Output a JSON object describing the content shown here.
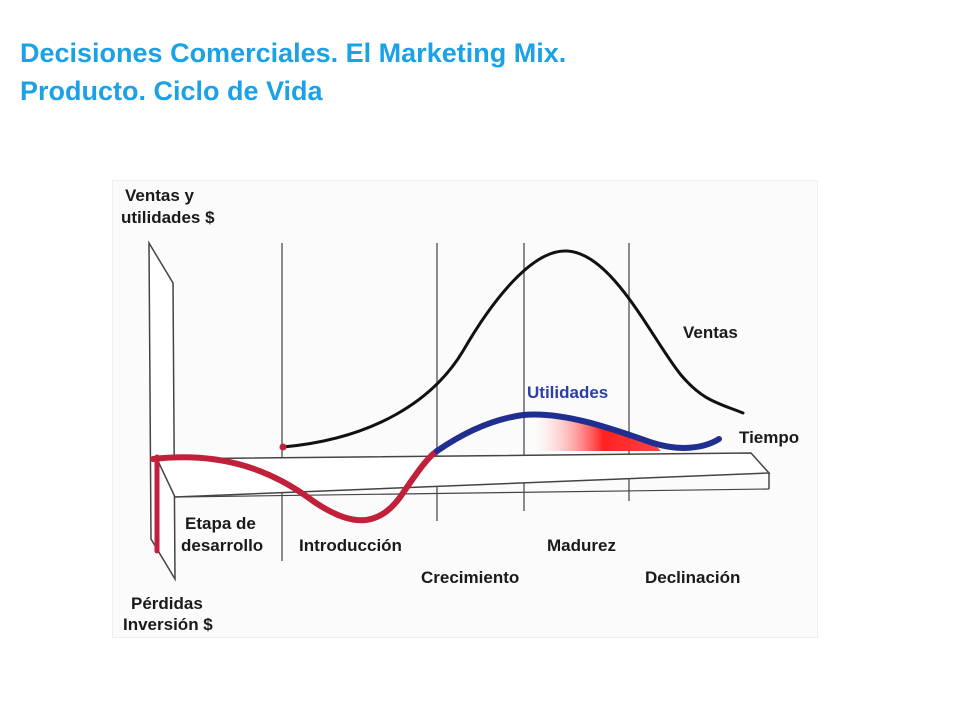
{
  "slide": {
    "title_line1": "Decisiones Comerciales. El Marketing Mix.",
    "title_line2": "Producto. Ciclo de Vida"
  },
  "diagram": {
    "y_axis_top": [
      "Ventas y",
      "utilidades $"
    ],
    "y_axis_bottom": [
      "Pérdidas",
      "Inversión $"
    ],
    "x_axis": "Tiempo",
    "curves": {
      "sales": "Ventas",
      "profit": "Utilidades"
    },
    "stages": {
      "development": [
        "Etapa de",
        "desarrollo"
      ],
      "introduction": "Introducción",
      "growth": "Crecimiento",
      "maturity": "Madurez",
      "decline": "Declinación"
    },
    "colors": {
      "title": "#1aa1e6",
      "sales_curve": "#111111",
      "profit_positive": "#1f2e8f",
      "loss_curve": "#c0203a",
      "profit_fill": "#ff2020"
    }
  }
}
